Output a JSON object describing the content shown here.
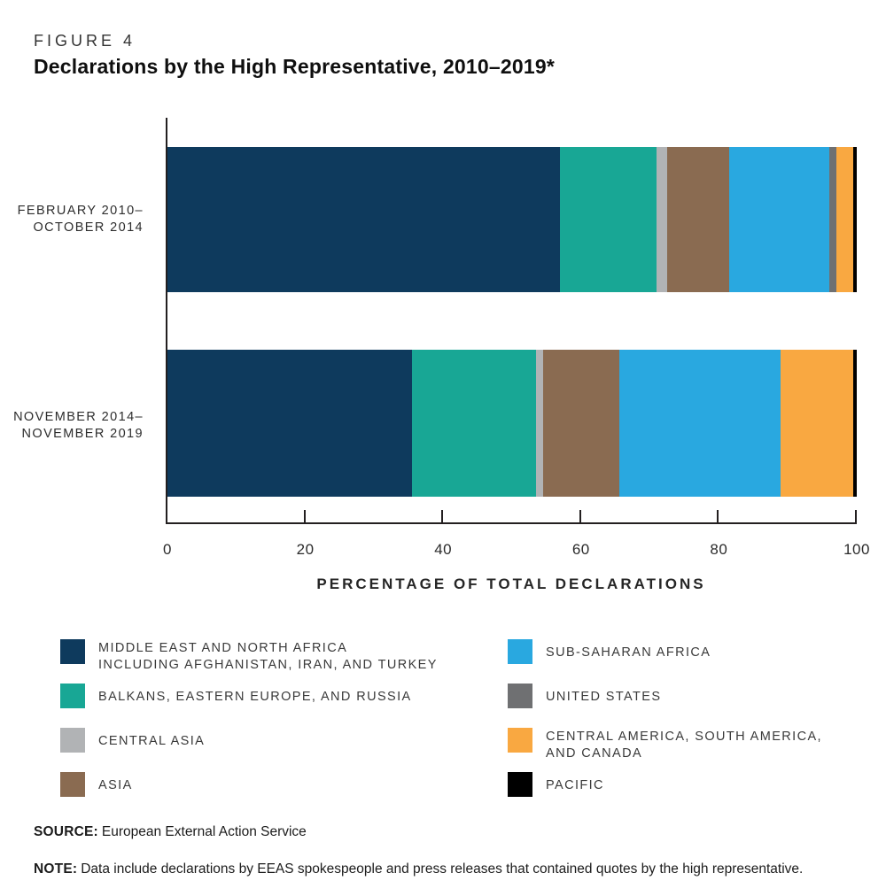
{
  "figure": {
    "label": "FIGURE 4",
    "title": "Declarations by the High Representative, 2010–2019*"
  },
  "chart_data": {
    "type": "bar",
    "orientation": "horizontal",
    "stacked": true,
    "unit": "percent",
    "title": "Declarations by the High Representative, 2010–2019*",
    "xlabel": "PERCENTAGE OF TOTAL DECLARATIONS",
    "ylabel": "",
    "xlim": [
      0,
      100
    ],
    "x_ticks": [
      0,
      20,
      40,
      60,
      80,
      100
    ],
    "grid": false,
    "legend_position": "bottom",
    "categories": [
      "FEBRUARY 2010–OCTOBER 2014",
      "NOVEMBER 2014–NOVEMBER 2019"
    ],
    "category_label_lines": [
      [
        "FEBRUARY 2010–",
        "OCTOBER 2014"
      ],
      [
        "NOVEMBER 2014–",
        "NOVEMBER 2019"
      ]
    ],
    "series": [
      {
        "id": "middle-east-north-africa",
        "name": "MIDDLE EAST AND NORTH AFRICA INCLUDING AFGHANISTAN, IRAN, AND TURKEY",
        "color": "#0E3A5D",
        "values": [
          57,
          35.5
        ]
      },
      {
        "id": "balkans-eastern-europe-russia",
        "name": "BALKANS, EASTERN EUROPE, AND RUSSIA",
        "color": "#18A795",
        "values": [
          14,
          18
        ]
      },
      {
        "id": "central-asia",
        "name": "CENTRAL ASIA",
        "color": "#B1B3B5",
        "values": [
          1.5,
          1
        ]
      },
      {
        "id": "asia",
        "name": "ASIA",
        "color": "#8A6B51",
        "values": [
          9,
          11
        ]
      },
      {
        "id": "sub-saharan-africa",
        "name": "SUB-SAHARAN AFRICA",
        "color": "#29A8E0",
        "values": [
          14.5,
          23.5
        ]
      },
      {
        "id": "united-states",
        "name": "UNITED STATES",
        "color": "#6F7072",
        "values": [
          1,
          0
        ]
      },
      {
        "id": "central-america-south-america-canada",
        "name": "CENTRAL AMERICA, SOUTH AMERICA, AND CANADA",
        "color": "#F9A841",
        "values": [
          2.5,
          10.5
        ]
      },
      {
        "id": "pacific",
        "name": "PACIFIC",
        "color": "#000000",
        "values": [
          0.5,
          0.5
        ]
      }
    ]
  },
  "legend": {
    "columns": [
      [
        {
          "id": "middle-east-north-africa",
          "color": "#0E3A5D",
          "lines": [
            "MIDDLE EAST AND NORTH AFRICA",
            "INCLUDING AFGHANISTAN, IRAN, AND TURKEY"
          ]
        },
        {
          "id": "balkans-eastern-europe-russia",
          "color": "#18A795",
          "lines": [
            "BALKANS, EASTERN EUROPE, AND RUSSIA"
          ]
        },
        {
          "id": "central-asia",
          "color": "#B1B3B5",
          "lines": [
            "CENTRAL ASIA"
          ]
        },
        {
          "id": "asia",
          "color": "#8A6B51",
          "lines": [
            "ASIA"
          ]
        }
      ],
      [
        {
          "id": "sub-saharan-africa",
          "color": "#29A8E0",
          "lines": [
            "SUB-SAHARAN AFRICA"
          ]
        },
        {
          "id": "united-states",
          "color": "#6F7072",
          "lines": [
            "UNITED STATES"
          ]
        },
        {
          "id": "central-america-south-america-canada",
          "color": "#F9A841",
          "lines": [
            "CENTRAL AMERICA, SOUTH AMERICA,",
            "AND CANADA"
          ]
        },
        {
          "id": "pacific",
          "color": "#000000",
          "lines": [
            "PACIFIC"
          ]
        }
      ]
    ]
  },
  "footer": {
    "source_label": "SOURCE:",
    "source_text": "European External Action Service",
    "note_label": "NOTE:",
    "note_text": "Data include declarations by EEAS spokespeople and press releases that contained quotes by the high representative."
  }
}
